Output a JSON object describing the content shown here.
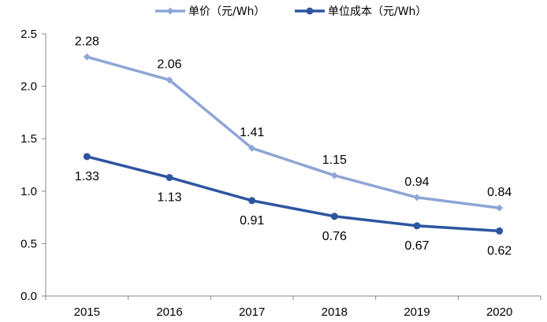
{
  "chart_data": {
    "type": "line",
    "title": "",
    "xlabel": "",
    "ylabel": "",
    "categories": [
      "2015",
      "2016",
      "2017",
      "2018",
      "2019",
      "2020"
    ],
    "ylim": [
      0.0,
      2.5
    ],
    "yticks": [
      "0.0",
      "0.5",
      "1.0",
      "1.5",
      "2.0",
      "2.5"
    ],
    "grid": false,
    "legend_position": "top",
    "series": [
      {
        "name": "单价（元/Wh）",
        "color": "#8ea5d6",
        "marker": "diamond",
        "values": [
          2.28,
          2.06,
          1.41,
          1.15,
          0.94,
          0.84
        ],
        "labels": [
          "2.28",
          "2.06",
          "1.41",
          "1.15",
          "0.94",
          "0.84"
        ],
        "label_position": "above"
      },
      {
        "name": "单位成本（元/Wh）",
        "color": "#2e55a0",
        "marker": "circle",
        "values": [
          1.33,
          1.13,
          0.91,
          0.76,
          0.67,
          0.62
        ],
        "labels": [
          "1.33",
          "1.13",
          "0.91",
          "0.76",
          "0.67",
          "0.62"
        ],
        "label_position": "below"
      }
    ]
  }
}
